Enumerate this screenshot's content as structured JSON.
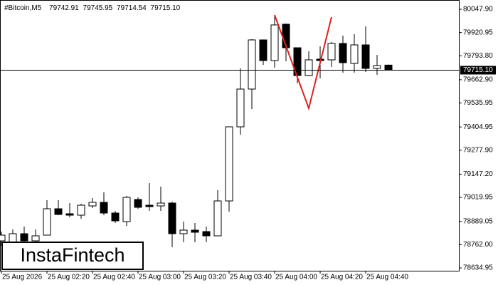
{
  "chart_data": {
    "type": "candlestick",
    "title": "#Bitcoin,M5",
    "watermark": "InstaFintech",
    "categories": [
      "25 Aug 2026",
      null,
      null,
      null,
      "25 Aug 02:20",
      null,
      null,
      null,
      "25 Aug 02:40",
      null,
      null,
      null,
      "25 Aug 03:00",
      null,
      null,
      null,
      "25 Aug 03:20",
      null,
      null,
      null,
      "25 Aug 03:40",
      null,
      null,
      null,
      "25 Aug 04:00",
      null,
      null,
      null,
      "25 Aug 04:20",
      null,
      null,
      null,
      "25 Aug 04:40",
      null,
      null
    ],
    "open": [
      78782.87,
      78775.08,
      78821.79,
      78782.87,
      78814.01,
      78958.03,
      78930.78,
      78923.0,
      78973.6,
      78993.06,
      78934.67,
      78887.96,
      79008.63,
      78977.49,
      78973.6,
      78989.17,
      78821.79,
      78841.25,
      78833.47,
      78810.12,
      79000.84,
      79405.65,
      79611.95,
      79880.53,
      79767.65,
      79966.16,
      79837.71,
      79685.91,
      79775.43,
      79771.54,
      79861.06,
      79752.08,
      79853.28,
      79724.83,
      79742.91
    ],
    "high": [
      78833.47,
      78845.15,
      78860.72,
      78845.15,
      79004.74,
      79004.74,
      78989.17,
      78985.27,
      79016.41,
      79047.55,
      78946.35,
      79028.09,
      79020.31,
      79098.15,
      79078.69,
      78996.95,
      78887.96,
      78880.18,
      78860.72,
      79059.23,
      79405.65,
      79724.83,
      79884.42,
      79880.53,
      80016.76,
      79970.05,
      79837.71,
      79818.25,
      79845.49,
      79868.85,
      79903.88,
      79911.66,
      79954.48,
      79798.79,
      79745.95
    ],
    "low": [
      78755.62,
      78755.62,
      78767.3,
      78775.08,
      78814.01,
      78923.0,
      78911.32,
      78903.53,
      78961.92,
      78923.0,
      78880.18,
      78864.61,
      78958.03,
      78946.35,
      78946.35,
      78747.84,
      78775.08,
      78775.08,
      78775.08,
      78810.12,
      78942.46,
      79362.84,
      79502.96,
      79744.29,
      79728.72,
      79763.75,
      79643.09,
      79682.01,
      79670.34,
      79732.61,
      79701.48,
      79701.48,
      79705.37,
      79689.8,
      79714.54
    ],
    "close": [
      78814.01,
      78821.79,
      78782.87,
      78810.12,
      78958.03,
      78926.89,
      78923.0,
      78977.49,
      78993.06,
      78934.67,
      78891.86,
      79020.31,
      78965.81,
      78969.7,
      78989.17,
      78821.79,
      78841.25,
      78829.58,
      78810.12,
      79000.84,
      79405.65,
      79611.95,
      79880.53,
      79767.65,
      79962.27,
      79837.71,
      79685.91,
      79771.54,
      79767.65,
      79861.06,
      79755.97,
      79853.28,
      79724.83,
      79740.4,
      79715.1
    ],
    "up_color": "#ffffff",
    "down_color": "#000000",
    "last_price": {
      "value": 79715.1,
      "label": "79715.10"
    },
    "ylim": [
      78619.4,
      80098.5
    ],
    "yticks": [
      {
        "value": 80047.9,
        "label": "80047.90"
      },
      79920.95,
      {
        "value": 79793.8,
        "label": "79793.80"
      },
      {
        "value": 79662.9,
        "label": "79662.90"
      },
      79535.95,
      79404.95,
      {
        "value": 79277.9,
        "label": "79277.90"
      },
      {
        "value": 79147.2,
        "label": "79147.20"
      },
      79019.95,
      78889.05,
      {
        "value": 78762,
        "label": "78762.00"
      },
      78634.95
    ],
    "grid": false
  }
}
